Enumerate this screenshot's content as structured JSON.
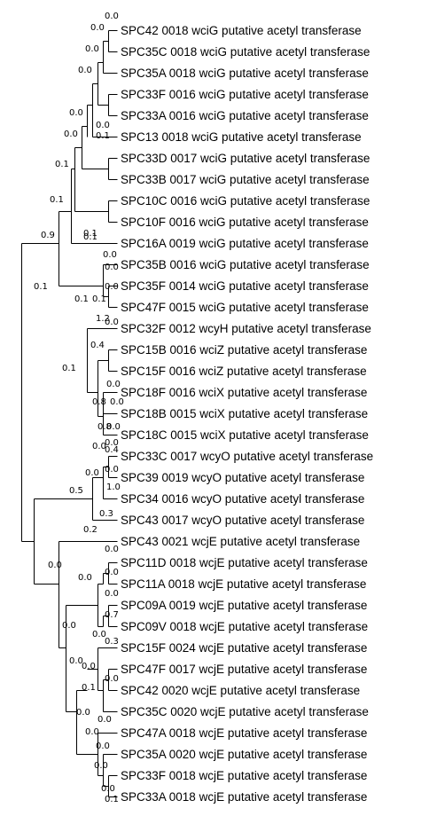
{
  "tree": {
    "leaves": [
      "SPC42 0018 wciG putative acetyl transferase",
      "SPC35C 0018 wciG putative acetyl transferase",
      "SPC35A 0018 wciG putative acetyl transferase",
      "SPC33F 0016 wciG putative acetyl transferase",
      "SPC33A 0016 wciG putative acetyl transferase",
      "SPC13 0018 wciG putative acetyl transferase",
      "SPC33D 0017 wciG putative acetyl transferase",
      "SPC33B 0017 wciG putative acetyl transferase",
      "SPC10C 0016 wciG putative acetyl transferase",
      "SPC10F 0016 wciG putative acetyl transferase",
      "SPC16A 0019 wciG putative acetyl transferase",
      "SPC35B 0016 wciG putative acetyl transferase",
      "SPC35F 0014 wciG putative acetyl transferase",
      "SPC47F 0015 wciG putative acetyl transferase",
      "SPC32F 0012 wcyH putative acetyl transferase",
      "SPC15B 0016 wciZ putative acetyl transferase",
      "SPC15F 0016 wciZ putative acetyl transferase",
      "SPC18F 0016 wciX putative acetyl transferase",
      "SPC18B 0015 wciX putative acetyl transferase",
      "SPC18C 0015 wciX putative acetyl transferase",
      "SPC33C 0017 wcyO putative acetyl transferase",
      "SPC39 0019 wcyO putative acetyl transferase",
      "SPC34 0016 wcyO putative acetyl transferase",
      "SPC43 0017 wcyO putative acetyl transferase",
      "SPC43 0021 wcjE putative acetyl transferase",
      "SPC11D 0018 wcjE putative acetyl transferase",
      "SPC11A 0018 wcjE putative acetyl transferase",
      "SPC09A 0019 wcjE putative acetyl transferase",
      "SPC09V 0018 wcjE putative acetyl transferase",
      "SPC15F 0024 wcjE putative acetyl transferase",
      "SPC47F 0017 wcjE putative acetyl transferase",
      "SPC42 0020 wcjE putative acetyl transferase",
      "SPC35C 0020 wcjE putative acetyl transferase",
      "SPC47A 0018 wcjE putative acetyl transferase",
      "SPC35A 0020 wcjE putative acetyl transferase",
      "SPC33F 0018 wcjE putative acetyl transferase",
      "SPC33A 0018 wcjE putative acetyl transferase"
    ],
    "branch_labels": [
      "0.0",
      "0.0",
      "0.0",
      "0.0",
      "0.0",
      "0.0",
      "0.0",
      "0.1",
      "0.1",
      "0.1",
      "0.1",
      "0.9",
      "0.1",
      "0.1",
      "0.1",
      "0.0",
      "0.0",
      "0.0",
      "0.1",
      "1.2",
      "0.0",
      "0.4",
      "0.1",
      "0.0",
      "0.8",
      "0.0",
      "0.8",
      "0.0",
      "0.0",
      "0.0",
      "0.4",
      "0.0",
      "0.0",
      "1.0",
      "0.5",
      "0.3",
      "0.2",
      "0.0",
      "0.0",
      "0.0",
      "0.0",
      "0.0",
      "0.7",
      "0.0",
      "0.0",
      "0.3",
      "0.0",
      "0.0",
      "0.0",
      "0.1",
      "0.0",
      "0.0",
      "0.0",
      "0.0",
      "0.0",
      "0.0",
      "0.1"
    ]
  }
}
